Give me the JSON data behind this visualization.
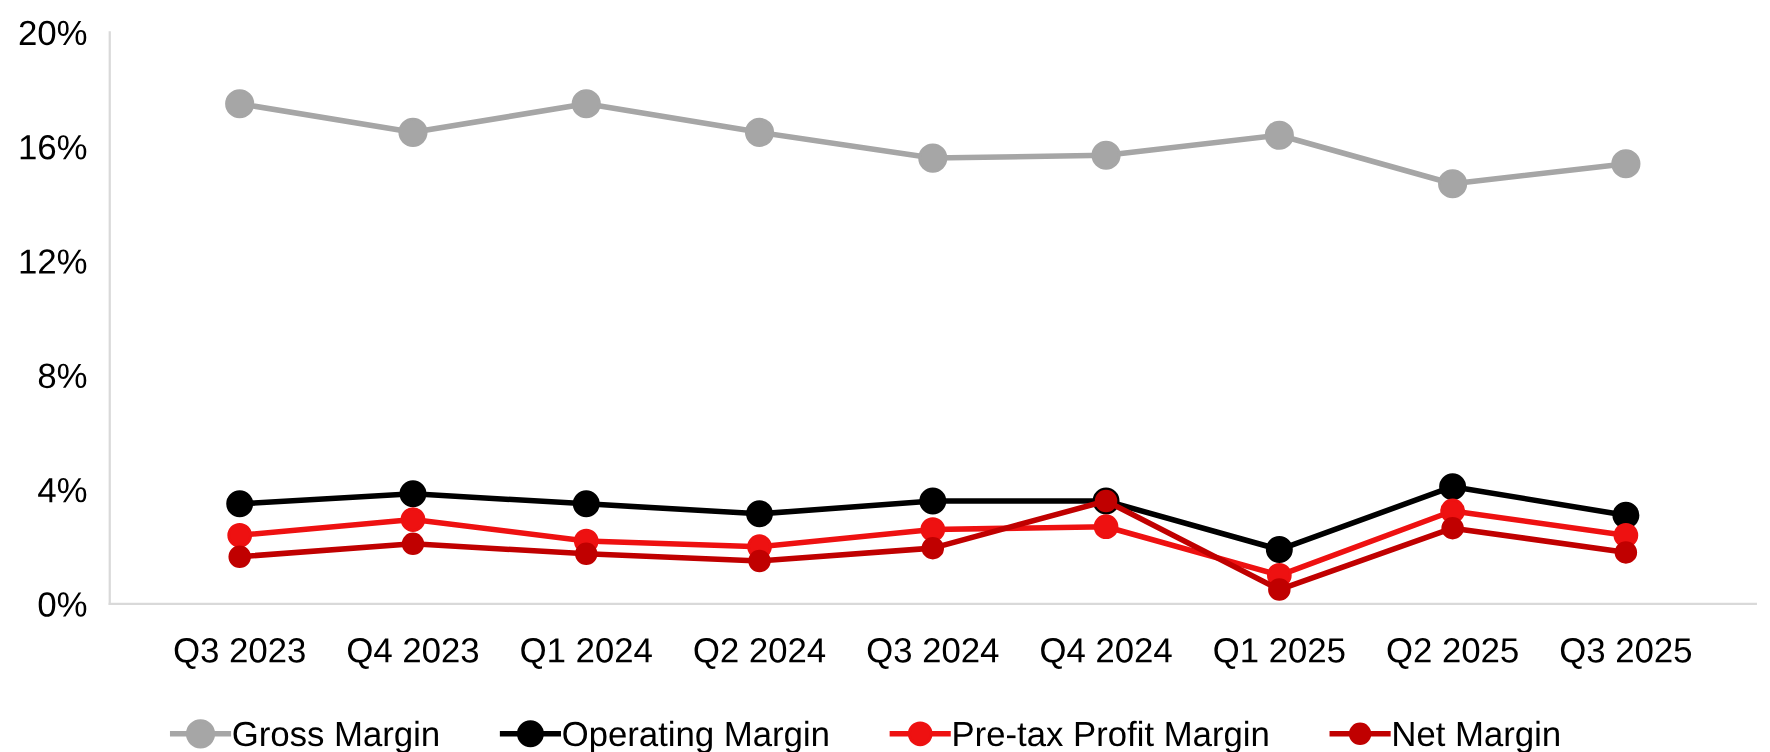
{
  "chart_data": {
    "type": "line",
    "categories": [
      "Q3 2023",
      "Q4 2023",
      "Q1 2024",
      "Q2 2024",
      "Q3 2024",
      "Q4 2024",
      "Q1 2025",
      "Q2 2025",
      "Q3 2025"
    ],
    "series": [
      {
        "name": "Gross Margin",
        "color": "#a6a6a6",
        "values": [
          17.5,
          16.5,
          17.5,
          16.5,
          15.6,
          15.7,
          16.4,
          14.7,
          15.4
        ]
      },
      {
        "name": "Operating Margin",
        "color": "#000000",
        "values": [
          3.5,
          3.85,
          3.5,
          3.15,
          3.6,
          3.6,
          1.9,
          4.1,
          3.1
        ]
      },
      {
        "name": "Pre-tax Profit Margin",
        "color": "#ee1111",
        "values": [
          2.4,
          2.95,
          2.2,
          2.0,
          2.6,
          2.7,
          1.0,
          3.25,
          2.4
        ]
      },
      {
        "name": "Net Margin",
        "color": "#c00000",
        "values": [
          1.65,
          2.1,
          1.75,
          1.5,
          1.95,
          3.6,
          0.5,
          2.65,
          1.8
        ]
      }
    ],
    "ylim": [
      0,
      20
    ],
    "yticks": [
      {
        "value": 0,
        "label": "0%"
      },
      {
        "value": 4,
        "label": "4%"
      },
      {
        "value": 8,
        "label": "8%"
      },
      {
        "value": 12,
        "label": "12%"
      },
      {
        "value": 16,
        "label": "16%"
      },
      {
        "value": 20,
        "label": "20%"
      }
    ],
    "grid": false,
    "legend": "bottom",
    "marker": "circle",
    "line_style": "solid"
  }
}
